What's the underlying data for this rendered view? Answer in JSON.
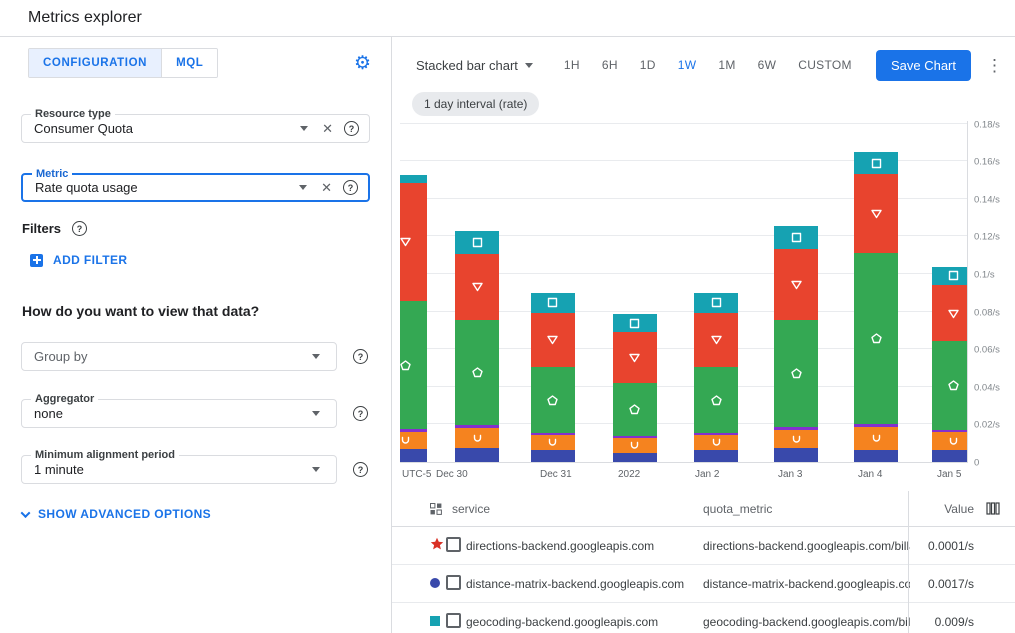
{
  "header": {
    "title": "Metrics explorer"
  },
  "colors": {
    "accent": "#1a73e8",
    "active_tab_bg": "#e8f0fe",
    "border": "#dadce0"
  },
  "left_panel": {
    "tabs": [
      {
        "label": "CONFIGURATION",
        "active": true
      },
      {
        "label": "MQL",
        "active": false
      }
    ],
    "resource_type": {
      "label": "Resource type",
      "value": "Consumer Quota"
    },
    "metric": {
      "label": "Metric",
      "value": "Rate quota usage"
    },
    "filters_label": "Filters",
    "add_filter_label": "ADD FILTER",
    "view_question": "How do you want to view that data?",
    "group_by": {
      "placeholder": "Group by"
    },
    "aggregator": {
      "label": "Aggregator",
      "value": "none"
    },
    "alignment": {
      "label": "Minimum alignment period",
      "value": "1 minute"
    },
    "advanced_label": "SHOW ADVANCED OPTIONS"
  },
  "toolbar": {
    "chart_type": "Stacked bar chart",
    "ranges": [
      "1H",
      "6H",
      "1D",
      "1W",
      "1M",
      "6W",
      "CUSTOM"
    ],
    "active_range": "1W",
    "save_label": "Save Chart"
  },
  "chip": "1 day interval (rate)",
  "chart_data": {
    "type": "bar",
    "stacked": true,
    "title": "",
    "xlabel": "",
    "ylabel": "",
    "unit": "/s",
    "ylim": [
      0,
      0.182
    ],
    "grid": true,
    "y_axis_side": "right",
    "x_labels": [
      "UTC-5",
      "Dec 30",
      "Dec 31",
      "2022",
      "Jan 2",
      "Jan 3",
      "Jan 4",
      "Jan 5"
    ],
    "y_tick_labels": [
      "0.18/s",
      "0.16/s",
      "0.14/s",
      "0.12/s",
      "0.1/s",
      "0.08/s",
      "0.06/s",
      "0.04/s",
      "0.02/s",
      "0"
    ],
    "y_tick_values": [
      0.18,
      0.16,
      0.14,
      0.12,
      0.1,
      0.08,
      0.06,
      0.04,
      0.02,
      0
    ],
    "categories": [
      "Dec 30 (clipped)",
      "Dec 30",
      "Dec 31",
      "2022",
      "Jan 2",
      "Jan 3",
      "Jan 4",
      "Jan 5"
    ],
    "series": [
      {
        "name": "blue",
        "color": "#3949ab",
        "marker": "circle",
        "values": [
          0.007,
          0.0074,
          0.0063,
          0.005,
          0.0063,
          0.0074,
          0.0063,
          0.0063
        ]
      },
      {
        "name": "orange",
        "color": "#f5831f",
        "marker": "cup",
        "values": [
          0.009,
          0.0105,
          0.008,
          0.0079,
          0.008,
          0.0095,
          0.0121,
          0.0095
        ]
      },
      {
        "name": "purple",
        "color": "#8430ce",
        "marker": "none",
        "values": [
          0.0016,
          0.0016,
          0.001,
          0.001,
          0.001,
          0.0016,
          0.0016,
          0.001
        ]
      },
      {
        "name": "green",
        "color": "#34a853",
        "marker": "pentagon",
        "values": [
          0.068,
          0.0563,
          0.0353,
          0.0279,
          0.0353,
          0.0568,
          0.0911,
          0.0474
        ]
      },
      {
        "name": "red",
        "color": "#e8442e",
        "marker": "triangle-down",
        "values": [
          0.063,
          0.0347,
          0.0289,
          0.0274,
          0.0289,
          0.0379,
          0.0421,
          0.03
        ]
      },
      {
        "name": "teal",
        "color": "#16a2b2",
        "marker": "square",
        "values": [
          0.004,
          0.0126,
          0.0105,
          0.0095,
          0.0105,
          0.0121,
          0.0116,
          0.0095
        ]
      }
    ]
  },
  "table": {
    "columns": [
      "service",
      "quota_metric",
      "Value"
    ],
    "rows": [
      {
        "marker": "star",
        "marker_color": "#d93025",
        "service": "directions-backend.googleapis.com",
        "quota_metric": "directions-backend.googleapis.com/billabl",
        "value": "0.0001/s"
      },
      {
        "marker": "circle",
        "marker_color": "#3949ab",
        "service": "distance-matrix-backend.googleapis.com",
        "quota_metric": "distance-matrix-backend.googleapis.com/l",
        "value": "0.0017/s"
      },
      {
        "marker": "square",
        "marker_color": "#16a2b2",
        "service": "geocoding-backend.googleapis.com",
        "quota_metric": "geocoding-backend.googleapis.com/billab",
        "value": "0.009/s"
      }
    ]
  }
}
